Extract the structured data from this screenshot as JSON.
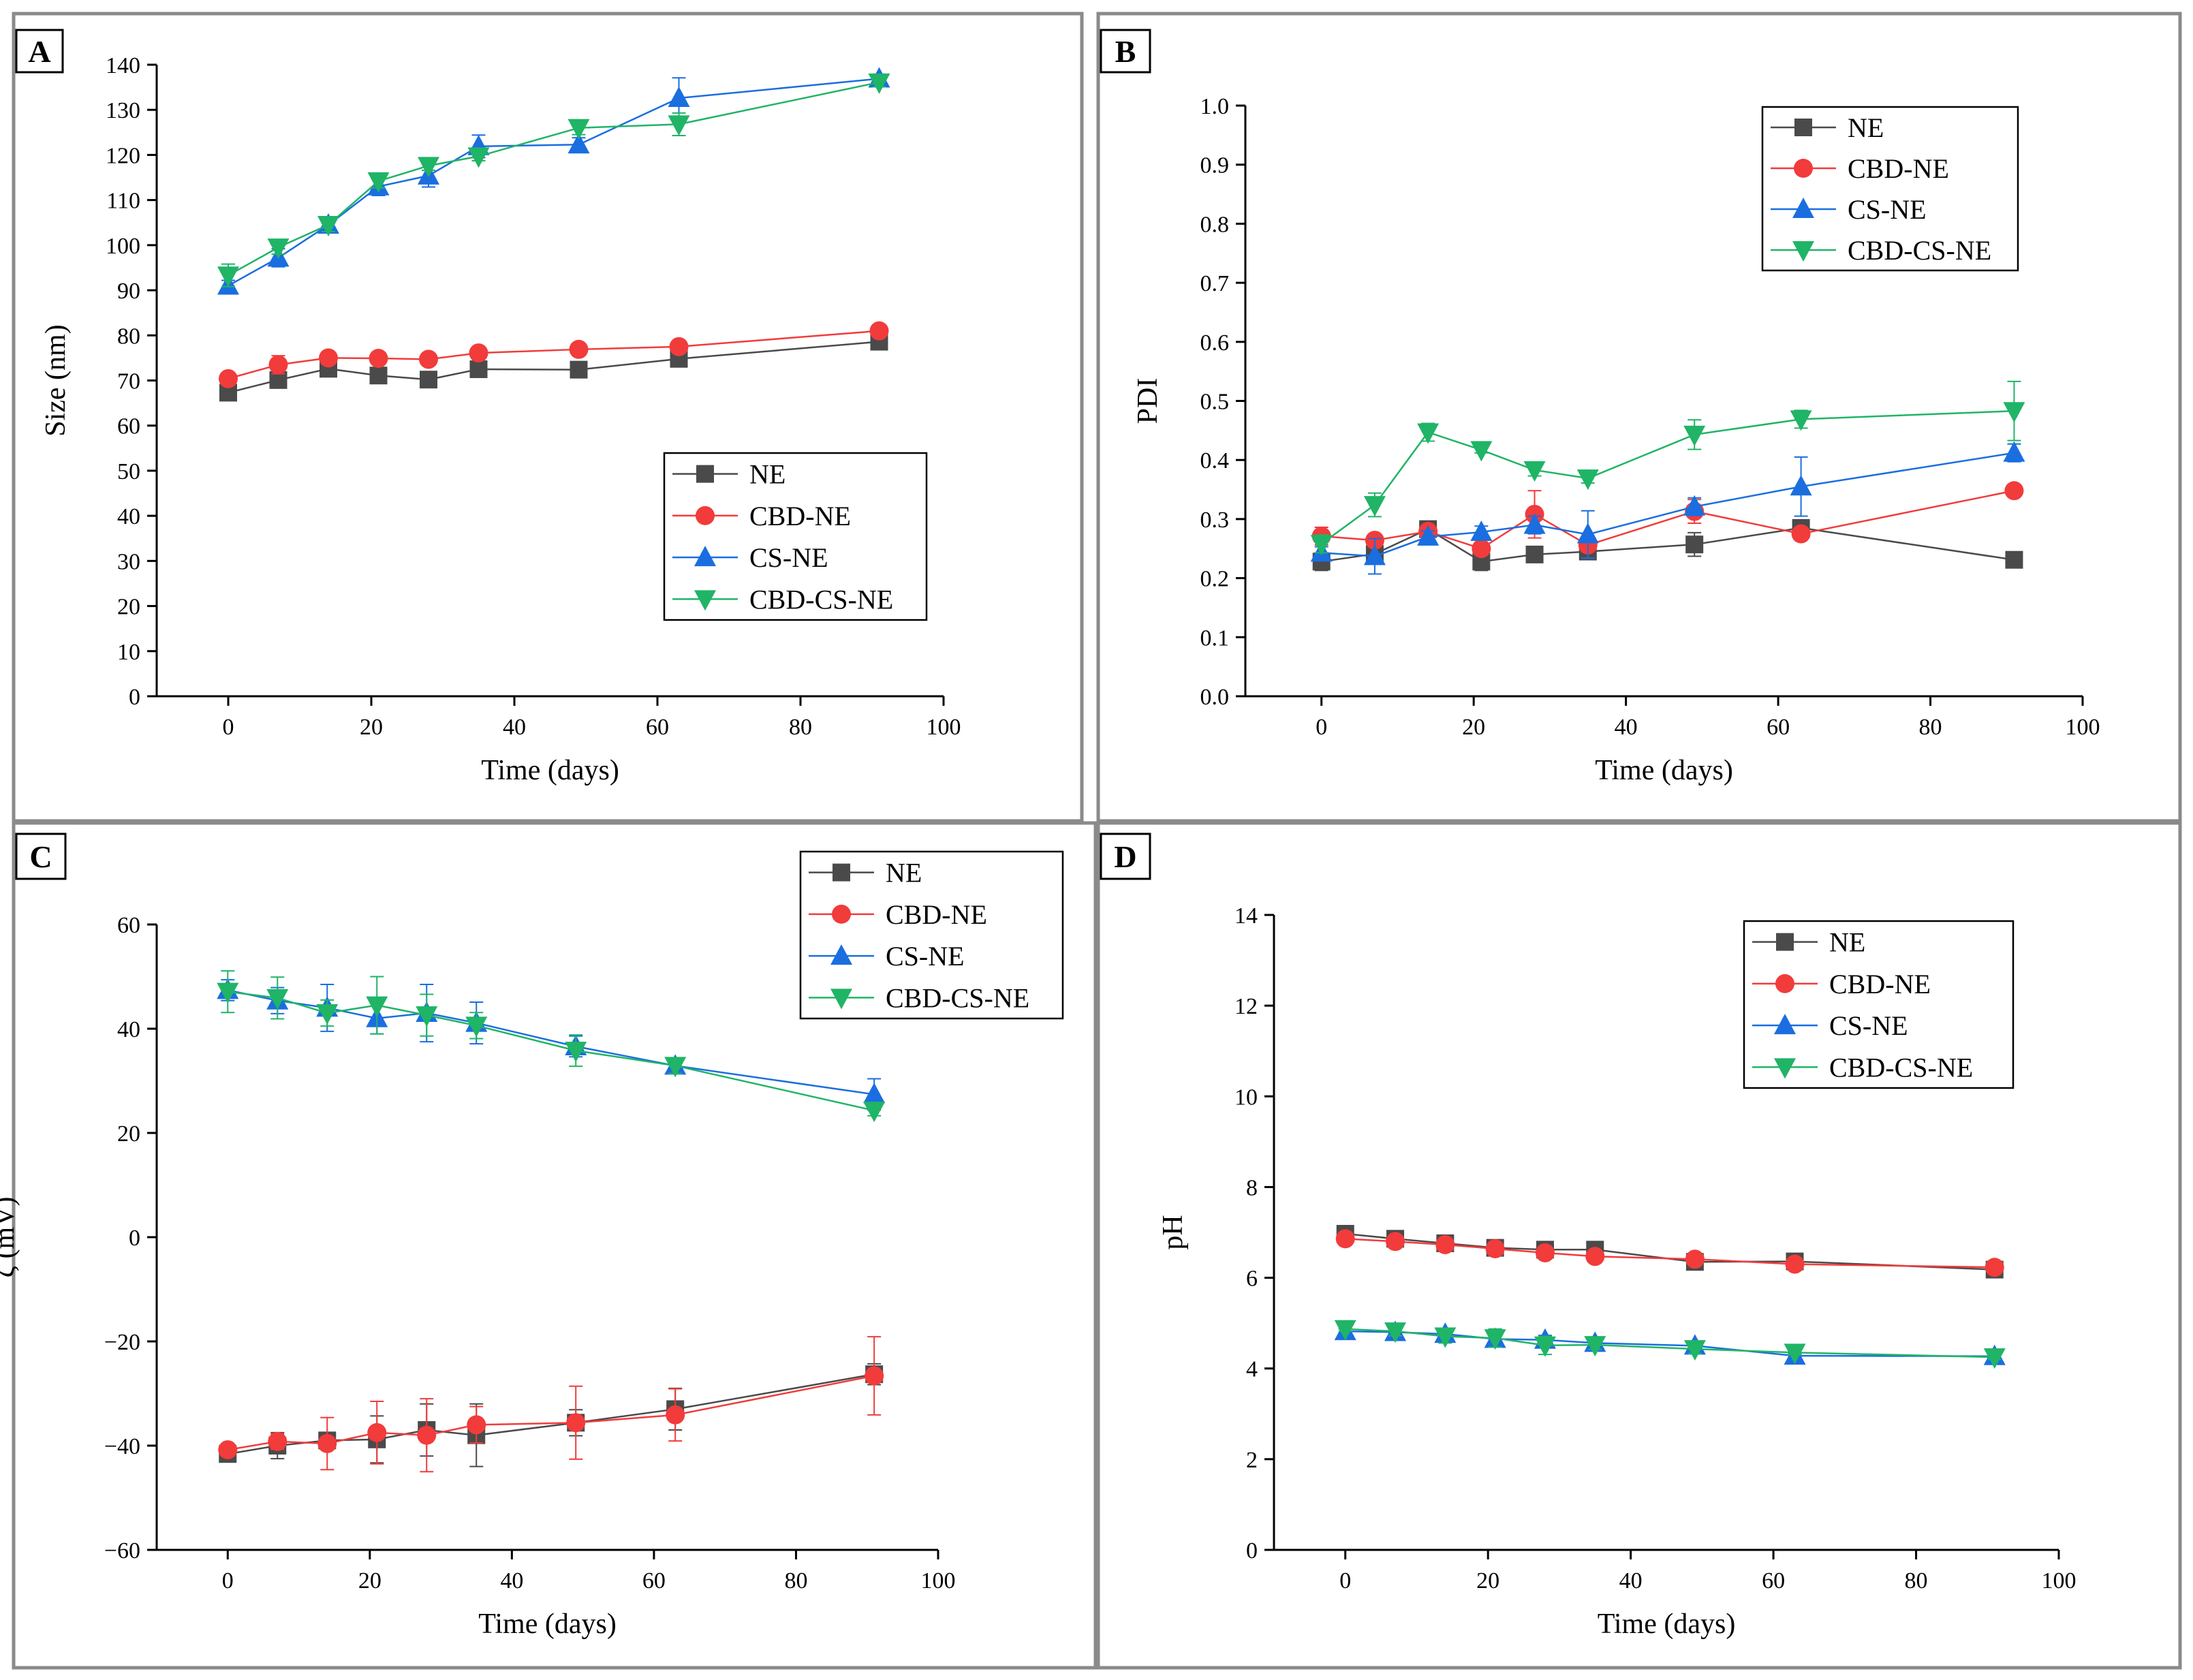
{
  "figure": {
    "colors": {
      "NE": "#4a4a4a",
      "CBD-NE": "#f23b3b",
      "CS-NE": "#1a6ee0",
      "CBD-CS-NE": "#20b466"
    },
    "markers": {
      "NE": "square",
      "CBD-NE": "circle",
      "CS-NE": "triangle-up",
      "CBD-CS-NE": "triangle-down"
    }
  },
  "chart_data": [
    {
      "panel": "A",
      "type": "line",
      "title": "",
      "xlabel": "Time (days)",
      "ylabel": "Size (nm)",
      "xlim": [
        -10,
        100
      ],
      "ylim": [
        0,
        140
      ],
      "xticks": [
        0,
        20,
        40,
        60,
        80,
        100
      ],
      "yticks": [
        0,
        10,
        20,
        30,
        40,
        50,
        60,
        70,
        80,
        90,
        100,
        110,
        120,
        130,
        140
      ],
      "x": [
        0,
        7,
        14,
        21,
        28,
        35,
        49,
        63,
        91
      ],
      "legend": [
        "NE",
        "CBD-NE",
        "CS-NE",
        "CBD-CS-NE"
      ],
      "legend_position": "center-right",
      "series": [
        {
          "name": "NE",
          "values": [
            67.3,
            70.1,
            72.6,
            71.1,
            70.2,
            72.5,
            72.4,
            74.8,
            78.6
          ],
          "errors": [
            0.8,
            0.8,
            0.8,
            0.8,
            0.8,
            0.8,
            0.8,
            0.8,
            0.8
          ]
        },
        {
          "name": "CBD-NE",
          "values": [
            70.4,
            73.5,
            75.0,
            74.9,
            74.7,
            76.1,
            76.9,
            77.5,
            81.0
          ],
          "errors": [
            1.0,
            2.0,
            1.0,
            1.0,
            1.0,
            1.0,
            1.0,
            1.0,
            1.0
          ]
        },
        {
          "name": "CS-NE",
          "values": [
            91.0,
            97.2,
            104.5,
            113.0,
            115.4,
            121.9,
            122.3,
            132.6,
            136.9
          ],
          "errors": [
            1.2,
            2.0,
            1.5,
            2.0,
            2.5,
            2.5,
            1.5,
            4.5,
            1.0
          ]
        },
        {
          "name": "CBD-CS-NE",
          "values": [
            93.3,
            99.5,
            104.5,
            114.2,
            117.6,
            119.7,
            126.0,
            126.8,
            136.1
          ],
          "errors": [
            2.5,
            1.5,
            1.5,
            1.5,
            1.0,
            1.0,
            1.5,
            2.5,
            1.0
          ]
        }
      ]
    },
    {
      "panel": "B",
      "type": "line",
      "title": "",
      "xlabel": "Time (days)",
      "ylabel": "PDI",
      "xlim": [
        -10,
        100
      ],
      "ylim": [
        0,
        1
      ],
      "xticks": [
        0,
        20,
        40,
        60,
        80,
        100
      ],
      "yticks": [
        0.0,
        0.1,
        0.2,
        0.3,
        0.4,
        0.5,
        0.6,
        0.7,
        0.8,
        0.9,
        1.0
      ],
      "x": [
        0,
        7,
        14,
        21,
        28,
        35,
        49,
        63,
        91
      ],
      "legend": [
        "NE",
        "CBD-NE",
        "CS-NE",
        "CBD-CS-NE"
      ],
      "legend_position": "top-right",
      "series": [
        {
          "name": "NE",
          "values": [
            0.228,
            0.241,
            0.283,
            0.228,
            0.24,
            0.245,
            0.257,
            0.285,
            0.231
          ],
          "errors": [
            0.015,
            0.01,
            0.01,
            0.015,
            0.01,
            0.01,
            0.02,
            0.01,
            0.005
          ]
        },
        {
          "name": "CBD-NE",
          "values": [
            0.271,
            0.264,
            0.279,
            0.25,
            0.308,
            0.256,
            0.313,
            0.275,
            0.348
          ],
          "errors": [
            0.015,
            0.01,
            0.01,
            0.01,
            0.04,
            0.01,
            0.02,
            0.01,
            0.008
          ]
        },
        {
          "name": "CS-NE",
          "values": [
            0.243,
            0.237,
            0.27,
            0.278,
            0.29,
            0.274,
            0.321,
            0.355,
            0.412
          ],
          "errors": [
            0.01,
            0.03,
            0.01,
            0.01,
            0.015,
            0.04,
            0.015,
            0.05,
            0.015
          ]
        },
        {
          "name": "CBD-CS-NE",
          "values": [
            0.258,
            0.324,
            0.447,
            0.417,
            0.383,
            0.369,
            0.443,
            0.469,
            0.483
          ],
          "errors": [
            0.015,
            0.02,
            0.015,
            0.005,
            0.01,
            0.008,
            0.025,
            0.015,
            0.05
          ]
        }
      ]
    },
    {
      "panel": "C",
      "type": "line",
      "title": "",
      "xlabel": "Time (days)",
      "ylabel": "ζ (mV)",
      "xlim": [
        -10,
        100
      ],
      "ylim": [
        -60,
        60
      ],
      "xticks": [
        0,
        20,
        40,
        60,
        80,
        100
      ],
      "yticks": [
        -60,
        -40,
        -20,
        0,
        20,
        40,
        60
      ],
      "ytick_labels": [
        "−60",
        "−40",
        "−20",
        "0",
        "20",
        "40",
        "60"
      ],
      "x": [
        0,
        7,
        14,
        21,
        28,
        35,
        49,
        63,
        91
      ],
      "legend": [
        "NE",
        "CBD-NE",
        "CS-NE",
        "CBD-CS-NE"
      ],
      "legend_position": "top-right",
      "series": [
        {
          "name": "NE",
          "values": [
            -41.6,
            -40.0,
            -39.0,
            -38.8,
            -37.0,
            -38.0,
            -35.6,
            -33.0,
            -26.3
          ],
          "errors": [
            1.0,
            2.5,
            1.5,
            4.5,
            5.0,
            6.0,
            2.5,
            4.0,
            2.0
          ]
        },
        {
          "name": "CBD-NE",
          "values": [
            -40.8,
            -39.2,
            -39.6,
            -37.5,
            -38.0,
            -36.0,
            -35.6,
            -34.1,
            -26.6
          ],
          "errors": [
            1.0,
            1.5,
            5.0,
            6.0,
            7.0,
            3.5,
            7.0,
            5.0,
            7.5
          ]
        },
        {
          "name": "CS-NE",
          "values": [
            47.4,
            45.4,
            44.0,
            42.0,
            43.0,
            41.1,
            36.6,
            32.9,
            27.4
          ],
          "errors": [
            2.0,
            2.5,
            4.5,
            3.0,
            5.5,
            4.0,
            2.0,
            1.5,
            3.0
          ]
        },
        {
          "name": "CBD-CS-NE",
          "values": [
            47.1,
            45.9,
            43.0,
            44.5,
            42.6,
            40.6,
            35.8,
            32.9,
            24.3
          ],
          "errors": [
            4.0,
            4.0,
            2.5,
            5.5,
            4.0,
            2.5,
            3.0,
            1.5,
            1.0
          ]
        }
      ]
    },
    {
      "panel": "D",
      "type": "line",
      "title": "",
      "xlabel": "Time (days)",
      "ylabel": "pH",
      "xlim": [
        -10,
        100
      ],
      "ylim": [
        0,
        14
      ],
      "xticks": [
        0,
        20,
        40,
        60,
        80,
        100
      ],
      "yticks": [
        0,
        2,
        4,
        6,
        8,
        10,
        12,
        14
      ],
      "x": [
        0,
        7,
        14,
        21,
        28,
        35,
        49,
        63,
        91
      ],
      "legend": [
        "NE",
        "CBD-NE",
        "CS-NE",
        "CBD-CS-NE"
      ],
      "legend_position": "top-right",
      "series": [
        {
          "name": "NE",
          "values": [
            6.97,
            6.86,
            6.76,
            6.66,
            6.62,
            6.62,
            6.35,
            6.36,
            6.18
          ],
          "errors": [
            0.04,
            0.04,
            0.04,
            0.04,
            0.04,
            0.04,
            0.04,
            0.04,
            0.04
          ]
        },
        {
          "name": "CBD-NE",
          "values": [
            6.86,
            6.8,
            6.73,
            6.64,
            6.55,
            6.47,
            6.41,
            6.3,
            6.23
          ],
          "errors": [
            0.04,
            0.04,
            0.04,
            0.04,
            0.04,
            0.04,
            0.04,
            0.04,
            0.04
          ]
        },
        {
          "name": "CS-NE",
          "values": [
            4.82,
            4.8,
            4.76,
            4.65,
            4.63,
            4.56,
            4.5,
            4.28,
            4.27
          ],
          "errors": [
            0.05,
            0.05,
            0.1,
            0.1,
            0.1,
            0.05,
            0.05,
            0.05,
            0.05
          ]
        },
        {
          "name": "CBD-CS-NE",
          "values": [
            4.87,
            4.82,
            4.71,
            4.67,
            4.51,
            4.52,
            4.43,
            4.35,
            4.25
          ],
          "errors": [
            0.05,
            0.1,
            0.15,
            0.2,
            0.2,
            0.1,
            0.1,
            0.05,
            0.05
          ]
        }
      ]
    }
  ]
}
